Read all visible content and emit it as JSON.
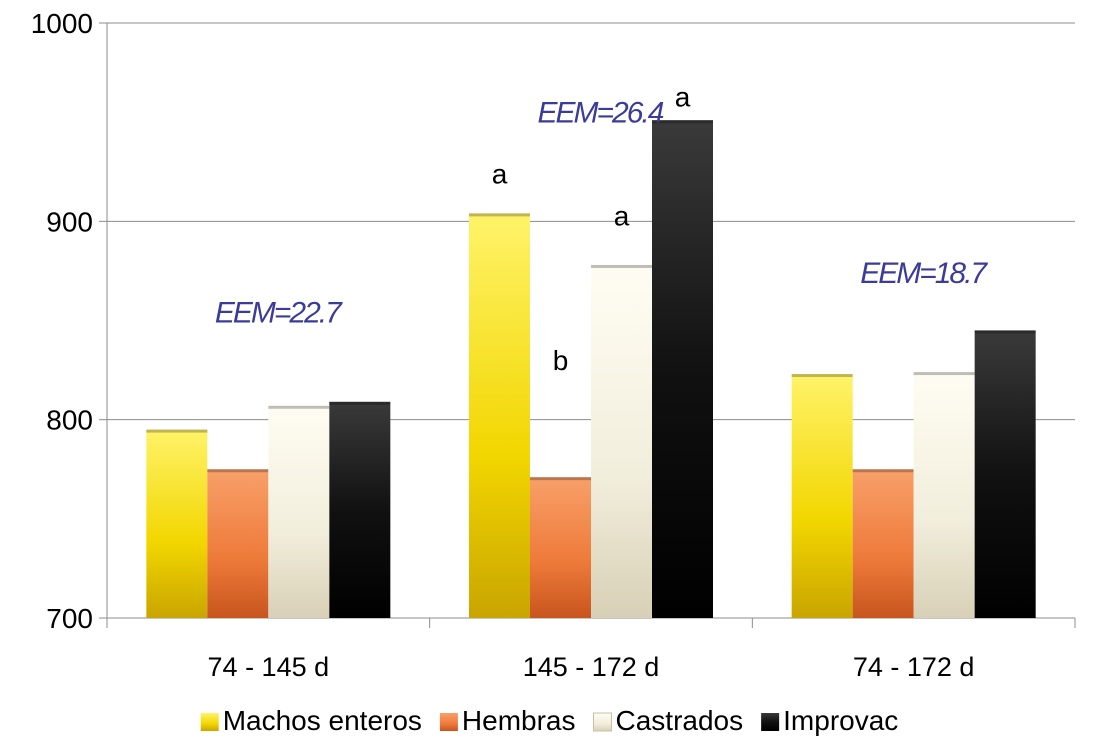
{
  "chart_data": {
    "type": "bar",
    "title": "",
    "xlabel": "",
    "ylabel": "",
    "ylim": [
      700,
      1000
    ],
    "yticks": [
      700,
      800,
      900,
      1000
    ],
    "grid": true,
    "legend_position": "bottom",
    "categories": [
      "74 - 145 d",
      "145 - 172 d",
      "74 - 172 d"
    ],
    "series": [
      {
        "name": "Machos enteros",
        "color": "#f2d600",
        "values": [
          795,
          904,
          823
        ]
      },
      {
        "name": "Hembras",
        "color": "#ee7a3a",
        "values": [
          775,
          771,
          775
        ]
      },
      {
        "name": "Castrados",
        "color": "#f2eedc",
        "values": [
          807,
          878,
          824
        ]
      },
      {
        "name": "Improvac",
        "color": "#111111",
        "values": [
          809,
          951,
          845
        ]
      }
    ],
    "annotations": [
      {
        "text": "EEM=22.7",
        "kind": "eem",
        "category": 0,
        "y": 854
      },
      {
        "text": "EEM=26.4",
        "kind": "eem",
        "category": 1,
        "y": 955
      },
      {
        "text": "EEM=18.7",
        "kind": "eem",
        "category": 2,
        "y": 874
      },
      {
        "text": "a",
        "kind": "sig",
        "category": 1,
        "series": 0,
        "y": 924
      },
      {
        "text": "b",
        "kind": "sig",
        "category": 1,
        "series": 1,
        "y": 830
      },
      {
        "text": "a",
        "kind": "sig",
        "category": 1,
        "series": 2,
        "y": 903
      },
      {
        "text": "a",
        "kind": "sig",
        "category": 1,
        "series": 3,
        "y": 963
      }
    ]
  }
}
